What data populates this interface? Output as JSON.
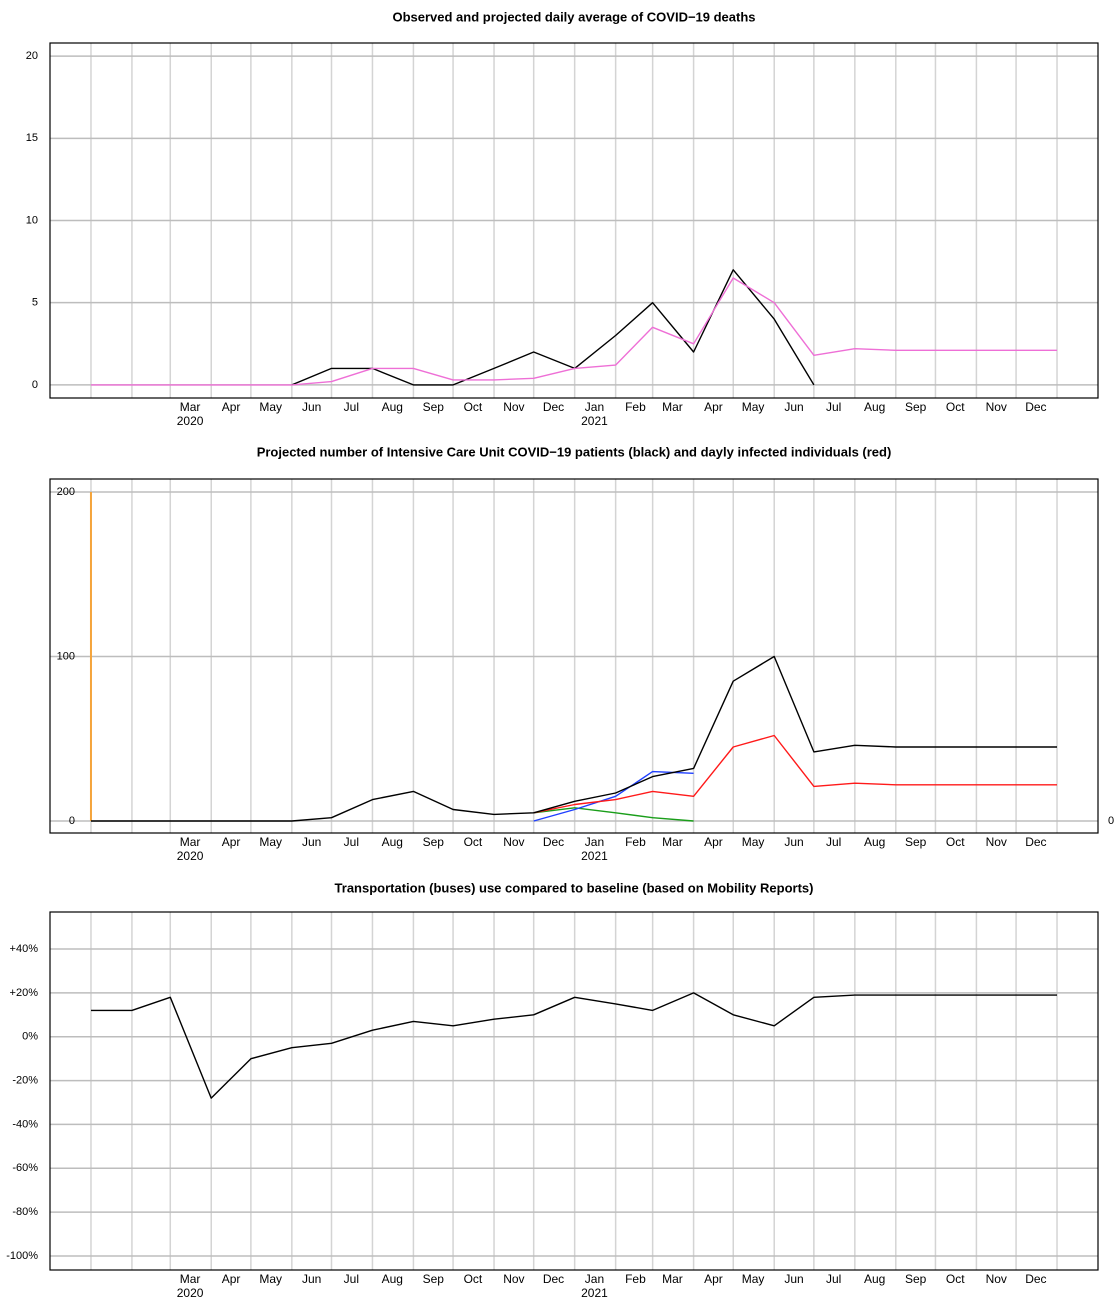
{
  "chart_data": [
    {
      "type": "line",
      "title": "Observed and projected daily average of COVID−19 deaths",
      "xlim": [
        "2019-12",
        "2022-02"
      ],
      "xgrid": [
        "2020-01",
        "2020-02",
        "2020-03",
        "2020-04",
        "2020-05",
        "2020-06",
        "2020-07",
        "2020-08",
        "2020-09",
        "2020-10",
        "2020-11",
        "2020-12",
        "2021-01",
        "2021-02",
        "2021-03",
        "2021-04",
        "2021-05",
        "2021-06",
        "2021-07",
        "2021-08",
        "2021-09",
        "2021-10",
        "2021-11",
        "2021-12",
        "2022-01"
      ],
      "xticks": [
        {
          "value": "2020-03",
          "label": "Mar"
        },
        {
          "value": "2020-04",
          "label": "Apr"
        },
        {
          "value": "2020-05",
          "label": "May"
        },
        {
          "value": "2020-06",
          "label": "Jun"
        },
        {
          "value": "2020-07",
          "label": "Jul"
        },
        {
          "value": "2020-08",
          "label": "Aug"
        },
        {
          "value": "2020-09",
          "label": "Sep"
        },
        {
          "value": "2020-10",
          "label": "Oct"
        },
        {
          "value": "2020-11",
          "label": "Nov"
        },
        {
          "value": "2020-12",
          "label": "Dec"
        },
        {
          "value": "2021-01",
          "label": "Jan"
        },
        {
          "value": "2021-02",
          "label": "Feb"
        },
        {
          "value": "2021-03",
          "label": "Mar"
        },
        {
          "value": "2021-04",
          "label": "Apr"
        },
        {
          "value": "2021-05",
          "label": "May"
        },
        {
          "value": "2021-06",
          "label": "Jun"
        },
        {
          "value": "2021-07",
          "label": "Jul"
        },
        {
          "value": "2021-08",
          "label": "Aug"
        },
        {
          "value": "2021-09",
          "label": "Sep"
        },
        {
          "value": "2021-10",
          "label": "Oct"
        },
        {
          "value": "2021-11",
          "label": "Nov"
        },
        {
          "value": "2021-12",
          "label": "Dec"
        }
      ],
      "xyears": [
        {
          "value": "2020-03",
          "label": "2020"
        },
        {
          "value": "2021-01",
          "label": "2021"
        }
      ],
      "ylim": [
        -0.8,
        20.8
      ],
      "yticks": [
        0,
        5,
        10,
        15,
        20
      ],
      "grid": true,
      "x": [
        "2020-01",
        "2020-02",
        "2020-03",
        "2020-04",
        "2020-05",
        "2020-06",
        "2020-07",
        "2020-08",
        "2020-09",
        "2020-10",
        "2020-11",
        "2020-12",
        "2021-01",
        "2021-02",
        "2021-03",
        "2021-04",
        "2021-05",
        "2021-06",
        "2021-07",
        "2021-08",
        "2021-09",
        "2021-10",
        "2021-11",
        "2021-12",
        "2022-01"
      ],
      "series": [
        {
          "color": "#000000",
          "values": [
            null,
            null,
            null,
            null,
            null,
            0,
            1,
            1,
            0,
            0,
            1,
            2,
            1,
            3,
            5,
            2,
            7,
            4,
            0,
            null,
            null,
            null,
            null,
            null,
            null
          ]
        },
        {
          "color": "#ee6fd6",
          "values": [
            0,
            0,
            0,
            0,
            0,
            0,
            0.2,
            1.0,
            1.0,
            0.3,
            0.3,
            0.4,
            1.0,
            1.2,
            3.5,
            2.5,
            6.5,
            5.0,
            1.8,
            2.2,
            2.1,
            2.1,
            2.1,
            2.1,
            2.1
          ]
        }
      ]
    },
    {
      "type": "line",
      "title": "Projected number of Intensive Care Unit COVID−19 patients (black) and dayly infected individuals (red)",
      "xlim": [
        "2019-12",
        "2022-02"
      ],
      "xgrid": [
        "2020-01",
        "2020-02",
        "2020-03",
        "2020-04",
        "2020-05",
        "2020-06",
        "2020-07",
        "2020-08",
        "2020-09",
        "2020-10",
        "2020-11",
        "2020-12",
        "2021-01",
        "2021-02",
        "2021-03",
        "2021-04",
        "2021-05",
        "2021-06",
        "2021-07",
        "2021-08",
        "2021-09",
        "2021-10",
        "2021-11",
        "2021-12",
        "2022-01"
      ],
      "xticks": [
        {
          "value": "2020-03",
          "label": "Mar"
        },
        {
          "value": "2020-04",
          "label": "Apr"
        },
        {
          "value": "2020-05",
          "label": "May"
        },
        {
          "value": "2020-06",
          "label": "Jun"
        },
        {
          "value": "2020-07",
          "label": "Jul"
        },
        {
          "value": "2020-08",
          "label": "Aug"
        },
        {
          "value": "2020-09",
          "label": "Sep"
        },
        {
          "value": "2020-10",
          "label": "Oct"
        },
        {
          "value": "2020-11",
          "label": "Nov"
        },
        {
          "value": "2020-12",
          "label": "Dec"
        },
        {
          "value": "2021-01",
          "label": "Jan"
        },
        {
          "value": "2021-02",
          "label": "Feb"
        },
        {
          "value": "2021-03",
          "label": "Mar"
        },
        {
          "value": "2021-04",
          "label": "Apr"
        },
        {
          "value": "2021-05",
          "label": "May"
        },
        {
          "value": "2021-06",
          "label": "Jun"
        },
        {
          "value": "2021-07",
          "label": "Jul"
        },
        {
          "value": "2021-08",
          "label": "Aug"
        },
        {
          "value": "2021-09",
          "label": "Sep"
        },
        {
          "value": "2021-10",
          "label": "Oct"
        },
        {
          "value": "2021-11",
          "label": "Nov"
        },
        {
          "value": "2021-12",
          "label": "Dec"
        }
      ],
      "xyears": [
        {
          "value": "2020-03",
          "label": "2020"
        },
        {
          "value": "2021-01",
          "label": "2021"
        }
      ],
      "ylim": [
        -7.3,
        207.9
      ],
      "yticks": [
        0,
        100,
        200
      ],
      "grid": true,
      "y2lim": [
        -7.3,
        207.9
      ],
      "y2ticks": [
        0
      ],
      "vline": {
        "x": "2020-01",
        "color": "#f5a43a"
      },
      "x": [
        "2020-01",
        "2020-02",
        "2020-03",
        "2020-04",
        "2020-05",
        "2020-06",
        "2020-07",
        "2020-08",
        "2020-09",
        "2020-10",
        "2020-11",
        "2020-12",
        "2021-01",
        "2021-02",
        "2021-03",
        "2021-04",
        "2021-05",
        "2021-06",
        "2021-07",
        "2021-08",
        "2021-09",
        "2021-10",
        "2021-11",
        "2021-12",
        "2022-01"
      ],
      "series": [
        {
          "color": "#1a9e1a",
          "values": [
            null,
            null,
            null,
            null,
            null,
            null,
            null,
            null,
            null,
            null,
            null,
            5,
            8,
            5,
            2,
            0,
            null,
            null,
            null,
            null,
            null,
            null,
            null,
            null,
            null
          ]
        },
        {
          "color": "#1f3fff",
          "values": [
            null,
            null,
            null,
            null,
            null,
            null,
            null,
            null,
            null,
            null,
            null,
            0,
            7,
            15,
            30,
            29,
            null,
            null,
            null,
            null,
            null,
            null,
            null,
            null,
            null
          ]
        },
        {
          "color": "#ff1a1a",
          "values": [
            null,
            null,
            null,
            null,
            null,
            null,
            null,
            null,
            null,
            null,
            null,
            5,
            10,
            13,
            18,
            15,
            45,
            52,
            21,
            23,
            22,
            22,
            22,
            22,
            22
          ]
        },
        {
          "color": "#000000",
          "values": [
            0,
            0,
            0,
            0,
            0,
            0,
            2,
            13,
            18,
            7,
            4,
            5,
            12,
            17,
            27,
            32,
            85,
            100,
            42,
            46,
            45,
            45,
            45,
            45,
            45
          ]
        }
      ]
    },
    {
      "type": "line",
      "title": "Transportation (buses) use compared to baseline (based on Mobility Reports)",
      "xlim": [
        "2019-12",
        "2022-02"
      ],
      "xgrid": [
        "2020-01",
        "2020-02",
        "2020-03",
        "2020-04",
        "2020-05",
        "2020-06",
        "2020-07",
        "2020-08",
        "2020-09",
        "2020-10",
        "2020-11",
        "2020-12",
        "2021-01",
        "2021-02",
        "2021-03",
        "2021-04",
        "2021-05",
        "2021-06",
        "2021-07",
        "2021-08",
        "2021-09",
        "2021-10",
        "2021-11",
        "2021-12",
        "2022-01"
      ],
      "xticks": [
        {
          "value": "2020-03",
          "label": "Mar"
        },
        {
          "value": "2020-04",
          "label": "Apr"
        },
        {
          "value": "2020-05",
          "label": "May"
        },
        {
          "value": "2020-06",
          "label": "Jun"
        },
        {
          "value": "2020-07",
          "label": "Jul"
        },
        {
          "value": "2020-08",
          "label": "Aug"
        },
        {
          "value": "2020-09",
          "label": "Sep"
        },
        {
          "value": "2020-10",
          "label": "Oct"
        },
        {
          "value": "2020-11",
          "label": "Nov"
        },
        {
          "value": "2020-12",
          "label": "Dec"
        },
        {
          "value": "2021-01",
          "label": "Jan"
        },
        {
          "value": "2021-02",
          "label": "Feb"
        },
        {
          "value": "2021-03",
          "label": "Mar"
        },
        {
          "value": "2021-04",
          "label": "Apr"
        },
        {
          "value": "2021-05",
          "label": "May"
        },
        {
          "value": "2021-06",
          "label": "Jun"
        },
        {
          "value": "2021-07",
          "label": "Jul"
        },
        {
          "value": "2021-08",
          "label": "Aug"
        },
        {
          "value": "2021-09",
          "label": "Sep"
        },
        {
          "value": "2021-10",
          "label": "Oct"
        },
        {
          "value": "2021-11",
          "label": "Nov"
        },
        {
          "value": "2021-12",
          "label": "Dec"
        }
      ],
      "xyears": [
        {
          "value": "2020-03",
          "label": "2020"
        },
        {
          "value": "2021-01",
          "label": "2021"
        }
      ],
      "ylim": [
        -106.4,
        56.9
      ],
      "yticks": [
        {
          "value": 40,
          "label": "+40%"
        },
        {
          "value": 20,
          "label": "+20%"
        },
        {
          "value": 0,
          "label": "0%"
        },
        {
          "value": -20,
          "label": "-20%"
        },
        {
          "value": -40,
          "label": "-40%"
        },
        {
          "value": -60,
          "label": "-60%"
        },
        {
          "value": -80,
          "label": "-80%"
        },
        {
          "value": -100,
          "label": "-100%"
        }
      ],
      "grid": true,
      "x": [
        "2020-01",
        "2020-02",
        "2020-03",
        "2020-04",
        "2020-05",
        "2020-06",
        "2020-07",
        "2020-08",
        "2020-09",
        "2020-10",
        "2020-11",
        "2020-12",
        "2021-01",
        "2021-02",
        "2021-03",
        "2021-04",
        "2021-05",
        "2021-06",
        "2021-07",
        "2021-08",
        "2021-09",
        "2021-10",
        "2021-11",
        "2021-12",
        "2022-01"
      ],
      "series": [
        {
          "color": "#000000",
          "values": [
            12,
            12,
            18,
            -28,
            -10,
            -5,
            -3,
            3,
            7,
            5,
            8,
            10,
            18,
            15,
            12,
            20,
            10,
            5,
            18,
            19,
            19,
            19,
            19,
            19,
            19
          ]
        }
      ]
    }
  ]
}
